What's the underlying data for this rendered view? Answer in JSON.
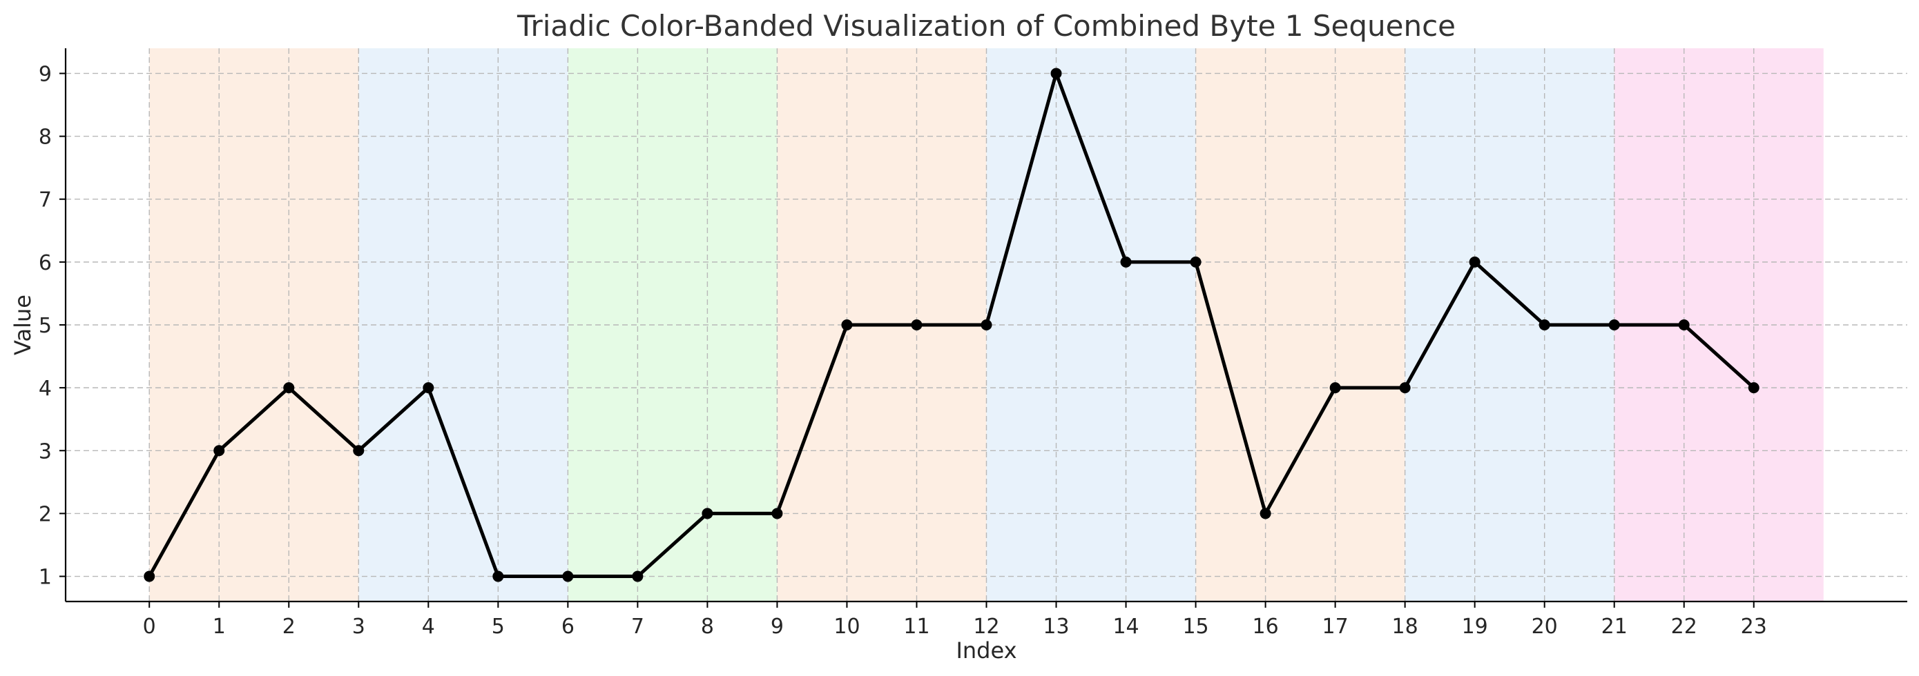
{
  "chart_data": {
    "type": "line",
    "title": "Triadic Color-Banded Visualization of Combined Byte 1 Sequence",
    "xlabel": "Index",
    "ylabel": "Value",
    "x": [
      0,
      1,
      2,
      3,
      4,
      5,
      6,
      7,
      8,
      9,
      10,
      11,
      12,
      13,
      14,
      15,
      16,
      17,
      18,
      19,
      20,
      21,
      22,
      23
    ],
    "series": [
      {
        "values": [
          1,
          3,
          4,
          3,
          4,
          1,
          1,
          1,
          2,
          2,
          5,
          5,
          5,
          9,
          6,
          6,
          2,
          4,
          4,
          6,
          5,
          5,
          5,
          4
        ],
        "color": "#000000",
        "marker": "circle"
      }
    ],
    "xticks": [
      "0",
      "1",
      "2",
      "3",
      "4",
      "5",
      "6",
      "7",
      "8",
      "9",
      "10",
      "11",
      "12",
      "13",
      "14",
      "15",
      "16",
      "17",
      "18",
      "19",
      "20",
      "21",
      "22",
      "23"
    ],
    "yticks": [
      "1",
      "2",
      "3",
      "4",
      "5",
      "6",
      "7",
      "8",
      "9"
    ],
    "xlim": [
      -1.2,
      25.2
    ],
    "ylim": [
      0.6,
      9.4
    ],
    "grid": true,
    "bands": [
      {
        "start": 0,
        "end": 3,
        "color": "#fdeee3"
      },
      {
        "start": 3,
        "end": 6,
        "color": "#e8f2fb"
      },
      {
        "start": 6,
        "end": 9,
        "color": "#e5fbe5"
      },
      {
        "start": 9,
        "end": 12,
        "color": "#fdeee3"
      },
      {
        "start": 12,
        "end": 15,
        "color": "#e8f2fb"
      },
      {
        "start": 15,
        "end": 18,
        "color": "#fdeee3"
      },
      {
        "start": 18,
        "end": 21,
        "color": "#e8f2fb"
      },
      {
        "start": 21,
        "end": 24,
        "color": "#fde1f3"
      }
    ]
  }
}
